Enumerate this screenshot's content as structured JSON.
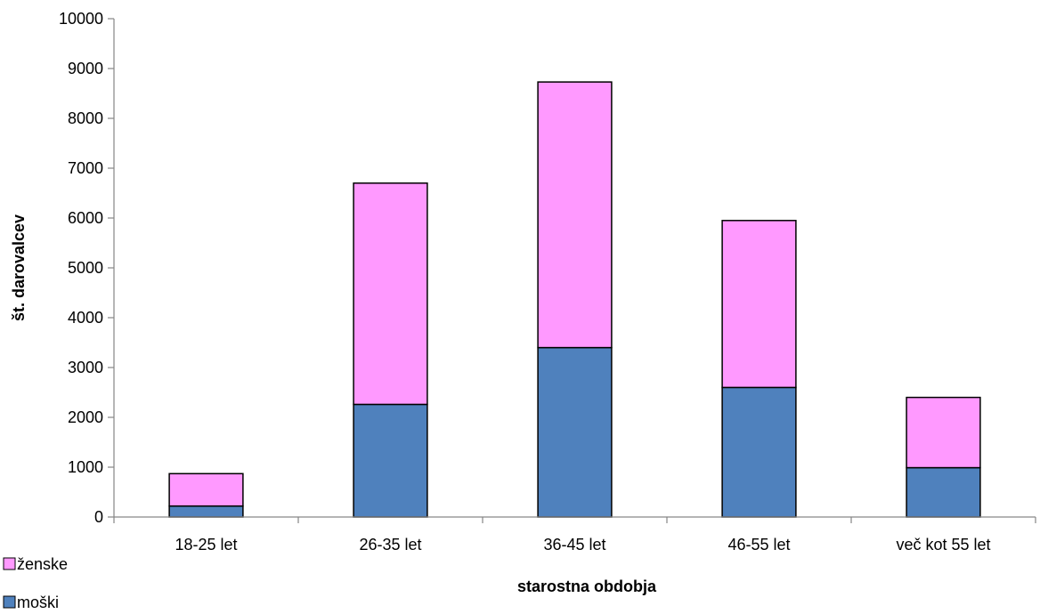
{
  "chart_data": {
    "type": "bar",
    "stacked": true,
    "categories": [
      "18-25 let",
      "26-35 let",
      "36-45 let",
      "46-55 let",
      "več kot 55 let"
    ],
    "series": [
      {
        "name": "moški",
        "values": [
          220,
          2260,
          3400,
          2600,
          990
        ],
        "color": "#4f81bd"
      },
      {
        "name": "ženske",
        "values": [
          650,
          4440,
          5330,
          3350,
          1410
        ],
        "color": "#ff99ff"
      }
    ],
    "ylim": [
      0,
      10000
    ],
    "yticks": [
      0,
      1000,
      2000,
      3000,
      4000,
      5000,
      6000,
      7000,
      8000,
      9000,
      10000
    ],
    "xlabel": "starostna obdobja",
    "ylabel": "št. darovalcev",
    "grid": false,
    "legend": {
      "placement": "bottom-left",
      "entries": [
        "ženske",
        "moški"
      ]
    }
  }
}
